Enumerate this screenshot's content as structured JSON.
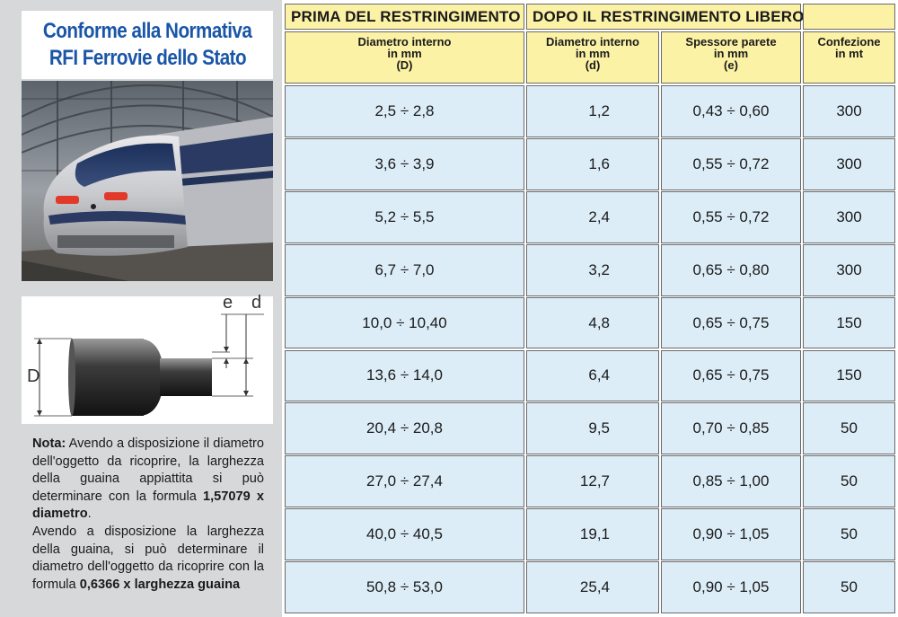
{
  "sidebar": {
    "title_line1": "Conforme alla Normativa",
    "title_line2": "RFI Ferrovie dello Stato",
    "photo_icon": "high-speed-train-photo",
    "diagram": {
      "label_e": "e",
      "label_d": "d",
      "label_D": "D",
      "icon": "heat-shrink-tube-diagram"
    },
    "note": {
      "lead": "Nota:",
      "part1": " Avendo a disposizione il diametro dell'oggetto da ricoprire, la larghezza della guaina appiattita si può determinare con la formula ",
      "formula1": "1,57079 x diametro",
      "part2": ".",
      "part3": "Avendo a disposizione la larghezza della guaina, si può determinare il diametro dell'oggetto da ricoprire con la formula ",
      "formula2": "0,6366 x larghezza guaina"
    }
  },
  "table": {
    "group_before": "PRIMA DEL RESTRINGIMENTO",
    "group_after": "DOPO IL RESTRINGIMENTO LIBERO",
    "columns": [
      {
        "l1": "Diametro interno",
        "l2": "in mm",
        "l3": "(D)"
      },
      {
        "l1": "Diametro interno",
        "l2": "in mm",
        "l3": "(d)"
      },
      {
        "l1": "Spessore parete",
        "l2": "in mm",
        "l3": "(e)"
      },
      {
        "l1": "Confezione",
        "l2": "in mt",
        "l3": ""
      }
    ],
    "rows": [
      [
        "2,5 ÷ 2,8",
        "1,2",
        "0,43 ÷ 0,60",
        "300"
      ],
      [
        "3,6 ÷ 3,9",
        "1,6",
        "0,55 ÷ 0,72",
        "300"
      ],
      [
        "5,2 ÷ 5,5",
        "2,4",
        "0,55 ÷ 0,72",
        "300"
      ],
      [
        "6,7 ÷ 7,0",
        "3,2",
        "0,65 ÷ 0,80",
        "300"
      ],
      [
        "10,0 ÷ 10,40",
        "4,8",
        "0,65 ÷ 0,75",
        "150"
      ],
      [
        "13,6 ÷ 14,0",
        "6,4",
        "0,65 ÷ 0,75",
        "150"
      ],
      [
        "20,4 ÷ 20,8",
        "9,5",
        "0,70 ÷ 0,85",
        "50"
      ],
      [
        "27,0 ÷ 27,4",
        "12,7",
        "0,85 ÷ 1,00",
        "50"
      ],
      [
        "40,0 ÷ 40,5",
        "19,1",
        "0,90 ÷ 1,05",
        "50"
      ],
      [
        "50,8 ÷ 53,0",
        "25,4",
        "0,90 ÷ 1,05",
        "50"
      ]
    ]
  },
  "colors": {
    "title_blue": "#1a56a8",
    "header_yellow": "#fcf2a6",
    "cell_blue": "#dcedf8",
    "sidebar_gray": "#d7d8d9"
  }
}
